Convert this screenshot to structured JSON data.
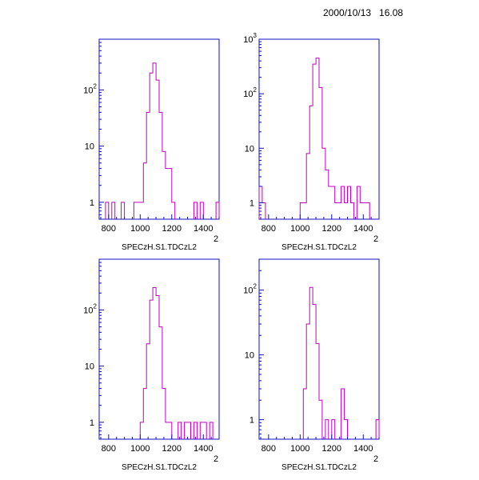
{
  "header": {
    "timestamp": "2000/10/13   16.08"
  },
  "colors": {
    "frame": "#1010c0",
    "histogram": "#c000c0",
    "text": "#000000"
  },
  "chart_data": [
    {
      "type": "histogram",
      "xlabel": "SPECzH.S1.TDCzL2",
      "x_exponent_label": "2",
      "xlim": [
        740,
        1500
      ],
      "ylog": true,
      "ylim": [
        0.5,
        800
      ],
      "xticks": [
        "800",
        "1000",
        "1200",
        "1400"
      ],
      "yticks": [
        "1",
        "10",
        "10²"
      ],
      "bin_edges_start": 740,
      "bin_width": 20,
      "counts": [
        0,
        0,
        1,
        0,
        1,
        0,
        0,
        1,
        0,
        0,
        0,
        1,
        1,
        1,
        5,
        40,
        200,
        300,
        150,
        40,
        8,
        4,
        4,
        1,
        0,
        0,
        0,
        0,
        0,
        0,
        1,
        0,
        1,
        0,
        0,
        0,
        0,
        1
      ]
    },
    {
      "type": "histogram",
      "xlabel": "SPECzH.S1.TDCzL2",
      "x_exponent_label": "2",
      "xlim": [
        740,
        1500
      ],
      "ylog": true,
      "ylim": [
        0.5,
        1000
      ],
      "xticks": [
        "800",
        "1000",
        "1200",
        "1400"
      ],
      "yticks": [
        "1",
        "10",
        "10²",
        "10³"
      ],
      "bin_edges_start": 740,
      "bin_width": 20,
      "counts": [
        2,
        1,
        0,
        0,
        0,
        0,
        0,
        0,
        0,
        0,
        0,
        0,
        0,
        1,
        1,
        8,
        60,
        350,
        450,
        130,
        10,
        4,
        2,
        2,
        1,
        1,
        2,
        1,
        2,
        1,
        0,
        2,
        1,
        1,
        1,
        0,
        0,
        0
      ]
    },
    {
      "type": "histogram",
      "xlabel": "SPECzH.S1.TDCzL2",
      "x_exponent_label": "2",
      "xlim": [
        740,
        1500
      ],
      "ylog": true,
      "ylim": [
        0.5,
        800
      ],
      "xticks": [
        "800",
        "1000",
        "1200",
        "1400"
      ],
      "yticks": [
        "1",
        "10",
        "10²"
      ],
      "bin_edges_start": 740,
      "bin_width": 20,
      "counts": [
        0,
        0,
        0,
        0,
        0,
        0,
        0,
        0,
        0,
        0,
        0,
        0,
        0,
        1,
        4,
        25,
        150,
        250,
        180,
        50,
        4,
        1,
        1,
        0,
        0,
        1,
        0,
        1,
        1,
        0,
        1,
        0,
        1,
        1,
        0,
        1,
        0,
        0
      ]
    },
    {
      "type": "histogram",
      "xlabel": "SPECzH.S1.TDCzL2",
      "x_exponent_label": "2",
      "xlim": [
        740,
        1500
      ],
      "ylog": true,
      "ylim": [
        0.5,
        300
      ],
      "xticks": [
        "800",
        "1000",
        "1200",
        "1400"
      ],
      "yticks": [
        "1",
        "10",
        "10²"
      ],
      "bin_edges_start": 740,
      "bin_width": 20,
      "counts": [
        0,
        0,
        0,
        0,
        0,
        0,
        0,
        0,
        0,
        0,
        0,
        0,
        0,
        0,
        3,
        30,
        110,
        60,
        15,
        2,
        0,
        1,
        0,
        1,
        0,
        0,
        3,
        1,
        0,
        0,
        0,
        0,
        0,
        0,
        0,
        0,
        0,
        1
      ]
    }
  ]
}
